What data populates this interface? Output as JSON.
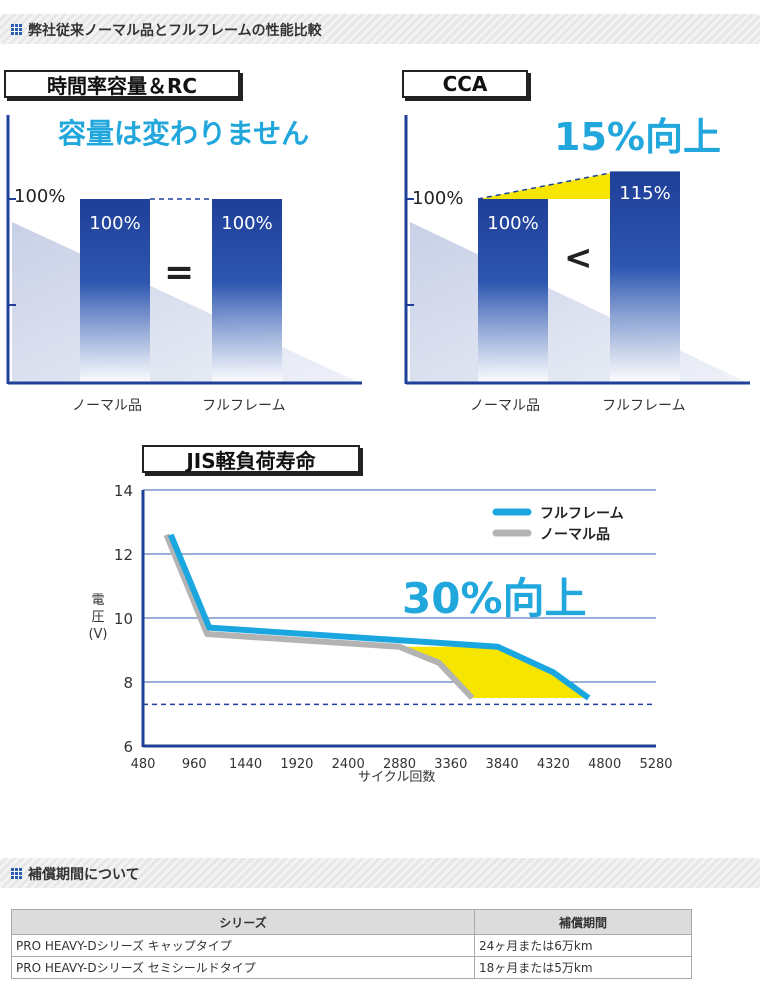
{
  "section1": {
    "title": "弊社従来ノーマル品とフルフレームの性能比較"
  },
  "chart1": {
    "label": "時間率容量＆RC",
    "headline": "容量は変わりません",
    "axis_label": "100%",
    "operator": "=",
    "color_bar": "#1f3f98"
  },
  "chart2": {
    "label": "CCA",
    "headline": "15%向上",
    "axis_label": "100%",
    "operator": "<",
    "color_highlight": "#f5e500"
  },
  "chart3": {
    "label": "JIS軽負荷寿命",
    "headline": "30%向上",
    "color_full": "#1aa7e0",
    "color_normal": "#b3b3b3"
  },
  "chart_data": [
    {
      "type": "bar",
      "categories": [
        "ノーマル品",
        "フルフレーム"
      ],
      "values": [
        100,
        100
      ],
      "value_labels": [
        "100%",
        "100%"
      ],
      "title": "時間率容量＆RC"
    },
    {
      "type": "bar",
      "categories": [
        "ノーマル品",
        "フルフレーム"
      ],
      "values": [
        100,
        115
      ],
      "value_labels": [
        "100%",
        "115%"
      ],
      "title": "CCA"
    },
    {
      "type": "line",
      "title": "JIS軽負荷寿命",
      "xlabel": "サイクル回数",
      "ylabel": "電圧(V)",
      "xlim": [
        480,
        5280
      ],
      "ylim": [
        6,
        14
      ],
      "x_ticks": [
        480,
        960,
        1440,
        1920,
        2400,
        2880,
        3360,
        3840,
        4320,
        4800,
        5280
      ],
      "y_ticks": [
        6,
        8,
        10,
        12,
        14
      ],
      "threshold": 7.3,
      "grid": true,
      "legend_position": "top-right",
      "series": [
        {
          "name": "フルフレーム",
          "x": [
            740,
            1100,
            3800,
            4320,
            4650
          ],
          "y": [
            12.6,
            9.7,
            9.1,
            8.3,
            7.5
          ]
        },
        {
          "name": "ノーマル品",
          "x": [
            700,
            1080,
            2880,
            3250,
            3560
          ],
          "y": [
            12.6,
            9.5,
            9.1,
            8.6,
            7.5
          ]
        }
      ]
    }
  ],
  "section2": {
    "title": "補償期間について"
  },
  "warranty": {
    "headers": [
      "シリーズ",
      "補償期間"
    ],
    "rows": [
      [
        "PRO HEAVY-Dシリーズ キャップタイプ",
        "24ヶ月または6万km"
      ],
      [
        "PRO HEAVY-Dシリーズ セミシールドタイプ",
        "18ヶ月または5万km"
      ]
    ]
  }
}
